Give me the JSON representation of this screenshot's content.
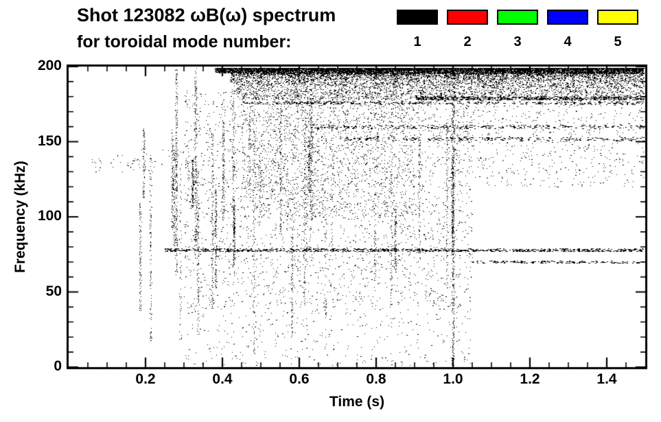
{
  "title": "Shot 123082 ωB(ω) spectrum",
  "subtitle": "for toroidal mode number:",
  "legend": {
    "items": [
      {
        "label": "1",
        "color": "#000000"
      },
      {
        "label": "2",
        "color": "#ff0000"
      },
      {
        "label": "3",
        "color": "#00ff00"
      },
      {
        "label": "4",
        "color": "#0000ff"
      },
      {
        "label": "5",
        "color": "#ffff00"
      }
    ]
  },
  "chart_data": {
    "type": "scatter",
    "title": "Shot 123082 ωB(ω) spectrum for toroidal mode number 1-5 (spectrogram, visible points are mode 1 = black)",
    "xlabel": "Time (s)",
    "ylabel": "Frequency (kHz)",
    "xlim": [
      0,
      1.5
    ],
    "ylim": [
      0,
      200
    ],
    "xticks": [
      0.2,
      0.4,
      0.6,
      0.8,
      1.0,
      1.2,
      1.4
    ],
    "xtick_labels": [
      "0.2",
      "0.4",
      "0.6",
      "0.8",
      "1.0",
      "1.2",
      "1.4"
    ],
    "yticks": [
      0,
      50,
      100,
      150,
      200
    ],
    "ytick_labels": [
      "0",
      "50",
      "100",
      "150",
      "200"
    ],
    "x_minor_step": 0.05,
    "y_minor_step": 10,
    "axis_color": "#000000",
    "point_color": "#000000",
    "seed": 42,
    "features": [
      {
        "kind": "band",
        "t": [
          0.38,
          1.5
        ],
        "f": [
          196,
          200
        ],
        "n": 14000,
        "bias": "top"
      },
      {
        "kind": "band",
        "t": [
          0.42,
          1.5
        ],
        "f": [
          186,
          196
        ],
        "n": 5000,
        "bias": "top"
      },
      {
        "kind": "band",
        "t": [
          0.42,
          1.5
        ],
        "f": [
          178,
          186
        ],
        "n": 1500
      },
      {
        "kind": "hline",
        "t": [
          0.9,
          1.5
        ],
        "f": 179,
        "jitter": 1.2,
        "n": 500
      },
      {
        "kind": "hline",
        "t": [
          0.45,
          1.5
        ],
        "f": 176,
        "jitter": 1.0,
        "n": 350
      },
      {
        "kind": "hline",
        "t": [
          0.62,
          1.5
        ],
        "f": 160,
        "jitter": 1.2,
        "n": 260
      },
      {
        "kind": "hline",
        "t": [
          0.7,
          1.5
        ],
        "f": 152,
        "jitter": 1.2,
        "n": 220
      },
      {
        "kind": "hline",
        "t": [
          0.25,
          1.5
        ],
        "f": 78,
        "jitter": 1.0,
        "n": 800
      },
      {
        "kind": "hline",
        "t": [
          1.05,
          1.5
        ],
        "f": 70,
        "jitter": 0.8,
        "n": 150
      },
      {
        "kind": "scatter",
        "t": [
          0.3,
          1.05
        ],
        "f": [
          40,
          185
        ],
        "n": 2600
      },
      {
        "kind": "scatter",
        "t": [
          0.45,
          0.9
        ],
        "f": [
          100,
          180
        ],
        "n": 1500
      },
      {
        "kind": "scatter",
        "t": [
          0.3,
          1.05
        ],
        "f": [
          0,
          40
        ],
        "n": 350
      },
      {
        "kind": "scatter",
        "t": [
          1.0,
          1.5
        ],
        "f": [
          120,
          185
        ],
        "n": 700
      },
      {
        "kind": "vstreaks",
        "t": [
          0.18,
          1.02
        ],
        "f": [
          0,
          200
        ],
        "count": 34,
        "nper": 110
      },
      {
        "kind": "vstreak",
        "t": 1.0,
        "f": [
          0,
          200
        ],
        "n": 450
      },
      {
        "kind": "vstreak",
        "t": 0.28,
        "f": [
          60,
          200
        ],
        "n": 250
      },
      {
        "kind": "vstreak",
        "t": 0.33,
        "f": [
          80,
          200
        ],
        "n": 200
      },
      {
        "kind": "scatter",
        "t": [
          0.05,
          0.3
        ],
        "f": [
          130,
          145
        ],
        "n": 60
      }
    ]
  }
}
